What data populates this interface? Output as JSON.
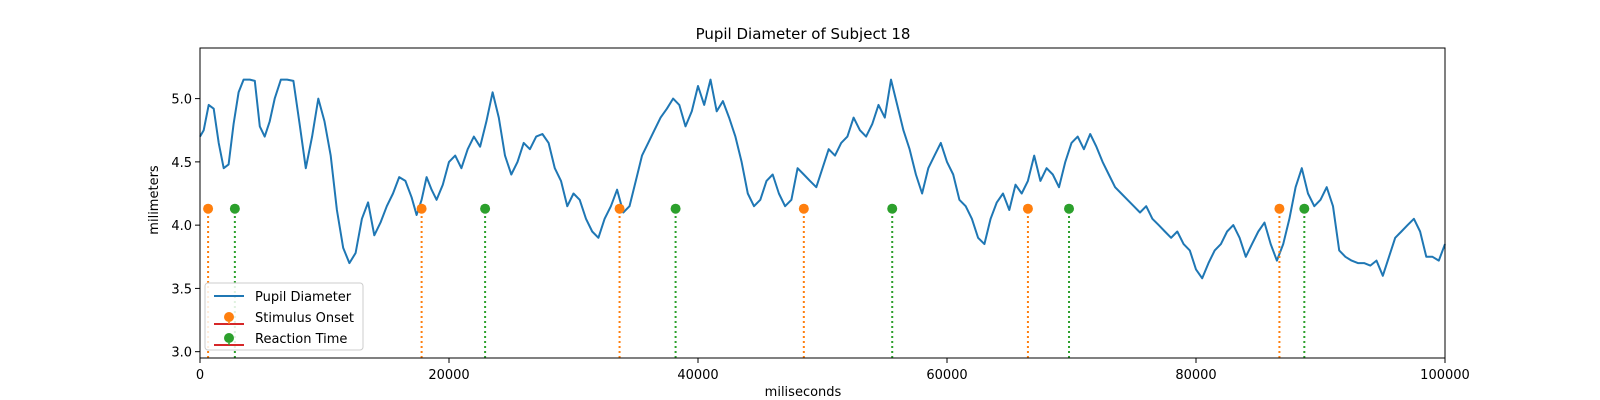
{
  "chart_data": {
    "type": "line",
    "title": "Pupil Diameter of Subject 18",
    "xlabel": "miliseconds",
    "ylabel": "milimeters",
    "xlim": [
      0,
      100000
    ],
    "ylim": [
      2.95,
      5.4
    ],
    "xticks": [
      {
        "value": 0,
        "label": "0"
      },
      {
        "value": 20000,
        "label": "20000"
      },
      {
        "value": 40000,
        "label": "40000"
      },
      {
        "value": 60000,
        "label": "60000"
      },
      {
        "value": 80000,
        "label": "80000"
      },
      {
        "value": 100000,
        "label": "100000"
      }
    ],
    "yticks": [
      {
        "value": 3.0,
        "label": "3.0"
      },
      {
        "value": 3.5,
        "label": "3.5"
      },
      {
        "value": 4.0,
        "label": "4.0"
      },
      {
        "value": 4.5,
        "label": "4.5"
      },
      {
        "value": 5.0,
        "label": "5.0"
      }
    ],
    "grid": false,
    "legend_position": "lower-left",
    "series": [
      {
        "name": "Pupil Diameter",
        "kind": "line",
        "color": "#1f77b4",
        "x": [
          0,
          300,
          700,
          1100,
          1500,
          1900,
          2300,
          2700,
          3100,
          3500,
          4000,
          4400,
          4800,
          5200,
          5600,
          6000,
          6500,
          7000,
          7500,
          8000,
          8500,
          9000,
          9500,
          10000,
          10500,
          11000,
          11500,
          12000,
          12500,
          13000,
          13500,
          14000,
          14500,
          15000,
          15500,
          16000,
          16500,
          17000,
          17400,
          17800,
          18200,
          18600,
          19000,
          19500,
          20000,
          20500,
          21000,
          21500,
          22000,
          22500,
          23000,
          23500,
          24000,
          24500,
          25000,
          25500,
          26000,
          26500,
          27000,
          27500,
          28000,
          28500,
          29000,
          29500,
          30000,
          30500,
          31000,
          31500,
          32000,
          32500,
          33000,
          33500,
          34000,
          34500,
          35000,
          35500,
          36000,
          36500,
          37000,
          37500,
          38000,
          38500,
          39000,
          39500,
          40000,
          40500,
          41000,
          41500,
          42000,
          42500,
          43000,
          43500,
          44000,
          44500,
          45000,
          45500,
          46000,
          46500,
          47000,
          47500,
          48000,
          48500,
          49000,
          49500,
          50000,
          50500,
          51000,
          51500,
          52000,
          52500,
          53000,
          53500,
          54000,
          54500,
          55000,
          55500,
          56000,
          56500,
          57000,
          57500,
          58000,
          58500,
          59000,
          59500,
          60000,
          60500,
          61000,
          61500,
          62000,
          62500,
          63000,
          63500,
          64000,
          64500,
          65000,
          65500,
          66000,
          66500,
          67000,
          67500,
          68000,
          68500,
          69000,
          69500,
          70000,
          70500,
          71000,
          71500,
          72000,
          72500,
          73000,
          73500,
          74000,
          74500,
          75000,
          75500,
          76000,
          76500,
          77000,
          77500,
          78000,
          78500,
          79000,
          79500,
          80000,
          80500,
          81000,
          81500,
          82000,
          82500,
          83000,
          83500,
          84000,
          84500,
          85000,
          85500,
          86000,
          86500,
          87000,
          87500,
          88000,
          88500,
          89000,
          89500,
          90000,
          90500,
          91000,
          91500,
          92000,
          92500,
          93000,
          93500,
          94000,
          94500,
          95000,
          95500,
          96000,
          96500,
          97000,
          97500,
          98000,
          98500,
          99000,
          99500,
          100000
        ],
        "y": [
          4.7,
          4.75,
          4.95,
          4.92,
          4.65,
          4.45,
          4.48,
          4.8,
          5.05,
          5.15,
          5.15,
          5.14,
          4.78,
          4.7,
          4.82,
          5.0,
          5.15,
          5.15,
          5.14,
          4.8,
          4.45,
          4.7,
          5.0,
          4.82,
          4.55,
          4.12,
          3.82,
          3.7,
          3.78,
          4.05,
          4.18,
          3.92,
          4.02,
          4.15,
          4.25,
          4.38,
          4.35,
          4.22,
          4.08,
          4.2,
          4.38,
          4.28,
          4.2,
          4.32,
          4.5,
          4.55,
          4.45,
          4.6,
          4.7,
          4.62,
          4.82,
          5.05,
          4.85,
          4.55,
          4.4,
          4.5,
          4.65,
          4.6,
          4.7,
          4.72,
          4.65,
          4.45,
          4.35,
          4.15,
          4.25,
          4.2,
          4.05,
          3.95,
          3.9,
          4.05,
          4.15,
          4.28,
          4.1,
          4.15,
          4.35,
          4.55,
          4.65,
          4.75,
          4.85,
          4.92,
          5.0,
          4.95,
          4.78,
          4.9,
          5.1,
          4.95,
          5.15,
          4.9,
          4.98,
          4.85,
          4.7,
          4.5,
          4.25,
          4.15,
          4.2,
          4.35,
          4.4,
          4.25,
          4.15,
          4.2,
          4.45,
          4.4,
          4.35,
          4.3,
          4.45,
          4.6,
          4.55,
          4.65,
          4.7,
          4.85,
          4.75,
          4.7,
          4.8,
          4.95,
          4.85,
          5.15,
          4.95,
          4.75,
          4.6,
          4.4,
          4.25,
          4.45,
          4.55,
          4.65,
          4.5,
          4.4,
          4.2,
          4.15,
          4.05,
          3.9,
          3.85,
          4.05,
          4.18,
          4.25,
          4.12,
          4.32,
          4.25,
          4.35,
          4.55,
          4.35,
          4.45,
          4.4,
          4.3,
          4.5,
          4.65,
          4.7,
          4.6,
          4.72,
          4.62,
          4.5,
          4.4,
          4.3,
          4.25,
          4.2,
          4.15,
          4.1,
          4.15,
          4.05,
          4.0,
          3.95,
          3.9,
          3.95,
          3.85,
          3.8,
          3.65,
          3.58,
          3.7,
          3.8,
          3.85,
          3.95,
          4.0,
          3.9,
          3.75,
          3.85,
          3.95,
          4.02,
          3.85,
          3.72,
          3.85,
          4.05,
          4.3,
          4.45,
          4.25,
          4.15,
          4.2,
          4.3,
          4.15,
          3.8,
          3.75,
          3.72,
          3.7,
          3.7,
          3.68,
          3.72,
          3.6,
          3.75,
          3.9,
          3.95,
          4.0,
          4.05,
          3.95,
          3.75,
          3.75,
          3.72,
          3.85
        ]
      },
      {
        "name": "Stimulus Onset",
        "kind": "stem",
        "color": "#ff7f0e",
        "x": [
          650,
          17800,
          33700,
          48500,
          66500,
          86700
        ],
        "y": [
          4.13,
          4.13,
          4.13,
          4.13,
          4.13,
          4.13
        ]
      },
      {
        "name": "Reaction Time",
        "kind": "stem",
        "color": "#2ca02c",
        "x": [
          2800,
          22900,
          38200,
          55600,
          69800,
          88700
        ],
        "y": [
          4.13,
          4.13,
          4.13,
          4.13,
          4.13,
          4.13
        ]
      }
    ],
    "legend_baseline_color": "#d62728"
  }
}
